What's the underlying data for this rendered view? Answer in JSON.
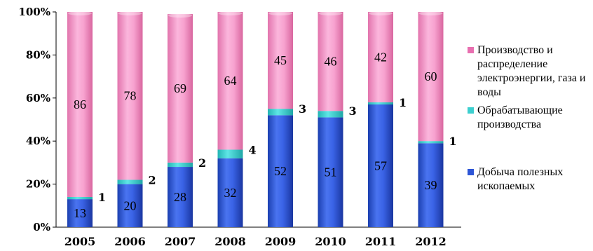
{
  "chart_data": {
    "type": "bar",
    "stacked": true,
    "categories": [
      "2005",
      "2006",
      "2007",
      "2008",
      "2009",
      "2010",
      "2011",
      "2012"
    ],
    "series": [
      {
        "name": "Добыча полезных ископаемых",
        "values": [
          13,
          20,
          28,
          32,
          52,
          51,
          57,
          39
        ],
        "color": "#2d55d6"
      },
      {
        "name": "Обрабатывающие производства",
        "values": [
          1,
          2,
          2,
          4,
          3,
          3,
          1,
          1
        ],
        "color": "#3ccfcf"
      },
      {
        "name": "Производство и распределение электроэнергии, газа и воды",
        "values": [
          86,
          78,
          69,
          64,
          45,
          46,
          42,
          60
        ],
        "color": "#f39ac8"
      }
    ],
    "y_ticks": [
      "0%",
      "20%",
      "40%",
      "60%",
      "80%",
      "100%"
    ],
    "ylim": [
      0,
      100
    ],
    "grid": false,
    "legend_position": "right"
  }
}
